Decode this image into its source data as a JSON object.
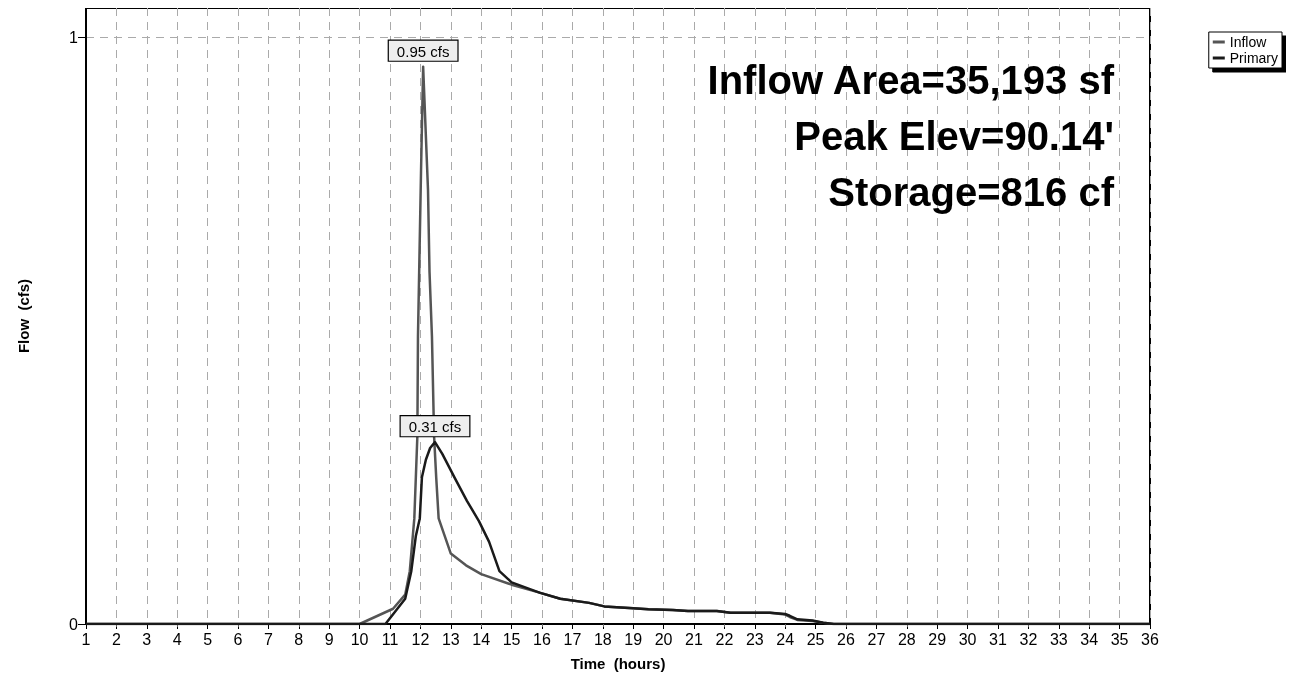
{
  "chart_data": {
    "type": "line",
    "xlabel": "Time  (hours)",
    "ylabel": "Flow  (cfs)",
    "xlim": [
      1,
      36
    ],
    "xticks": [
      1,
      2,
      3,
      4,
      5,
      6,
      7,
      8,
      9,
      10,
      11,
      12,
      13,
      14,
      15,
      16,
      17,
      18,
      19,
      20,
      21,
      22,
      23,
      24,
      25,
      26,
      27,
      28,
      29,
      30,
      31,
      32,
      33,
      34,
      35,
      36
    ],
    "ylim": [
      0,
      1.05
    ],
    "yticks": [
      0,
      1
    ],
    "grid": true,
    "legend": "top right",
    "marker": "none",
    "line_style": "solid",
    "series": [
      {
        "name": "Inflow",
        "color": "#555555",
        "x": [
          1,
          10.0,
          11.1,
          11.5,
          11.65,
          11.8,
          11.9,
          11.92,
          12.02,
          12.09,
          12.25,
          12.3,
          12.38,
          12.45,
          12.52,
          12.6,
          13.0,
          13.5,
          14.0,
          15.0,
          15.95,
          16.6,
          17.55,
          18.05,
          19.0,
          19.5,
          20.3,
          20.8,
          21.75,
          22.2,
          23.5,
          24.0,
          24.15,
          24.4,
          24.9,
          25.25,
          25.6,
          36
        ],
        "values": [
          0,
          0,
          0.026,
          0.05,
          0.09,
          0.18,
          0.32,
          0.49,
          0.77,
          0.95,
          0.74,
          0.6,
          0.49,
          0.32,
          0.25,
          0.18,
          0.12,
          0.1,
          0.085,
          0.067,
          0.053,
          0.043,
          0.036,
          0.03,
          0.027,
          0.025,
          0.024,
          0.022,
          0.022,
          0.019,
          0.019,
          0.016,
          0.012,
          0.007,
          0.005,
          0.002,
          0,
          0
        ]
      },
      {
        "name": "Primary",
        "color": "#1a1a1a",
        "x": [
          1,
          10.85,
          11.5,
          11.7,
          11.85,
          11.98,
          12.05,
          12.18,
          12.32,
          12.48,
          12.72,
          13.12,
          13.53,
          13.93,
          14.26,
          14.6,
          15.0,
          15.94,
          16.6,
          17.55,
          18.05,
          19.0,
          19.5,
          20.3,
          20.8,
          21.75,
          22.2,
          23.5,
          24.0,
          24.15,
          24.4,
          24.9,
          25.25,
          25.6,
          36
        ],
        "values": [
          0,
          0,
          0.043,
          0.09,
          0.15,
          0.18,
          0.25,
          0.28,
          0.3,
          0.31,
          0.29,
          0.25,
          0.21,
          0.175,
          0.14,
          0.09,
          0.071,
          0.053,
          0.043,
          0.036,
          0.03,
          0.027,
          0.025,
          0.024,
          0.022,
          0.022,
          0.019,
          0.019,
          0.017,
          0.014,
          0.008,
          0.006,
          0.002,
          0,
          0
        ]
      }
    ],
    "annotations": [
      {
        "text": "0.95 cfs",
        "x": 12.09,
        "y": 0.95
      },
      {
        "text": "0.31 cfs",
        "x": 12.48,
        "y": 0.31
      },
      "Inflow Area=35,193 sf",
      "Peak Elev=90.14'",
      "Storage=816 cf"
    ]
  }
}
